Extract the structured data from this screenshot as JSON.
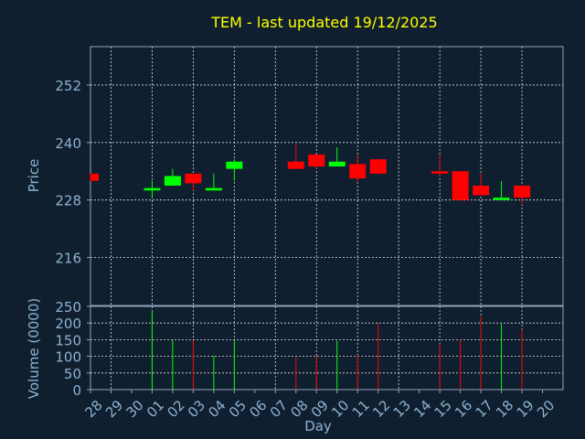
{
  "chart_data": {
    "type": "candlestick",
    "title": "TEM - last updated 19/12/2025",
    "price_panel": {
      "ylabel": "Price",
      "ylim": [
        206,
        260
      ],
      "yticks": [
        216,
        228,
        240,
        252
      ],
      "grid": true
    },
    "volume_panel": {
      "ylabel": "Volume (0000)",
      "ylim": [
        0,
        250
      ],
      "yticks": [
        0,
        50,
        100,
        150,
        200,
        250
      ],
      "grid": true
    },
    "xlabel": "Day",
    "x_tick_labels": [
      "28",
      "29",
      "30",
      "01",
      "02",
      "03",
      "04",
      "05",
      "06",
      "07",
      "08",
      "09",
      "10",
      "11",
      "12",
      "13",
      "14",
      "15",
      "16",
      "17",
      "18",
      "19",
      "20"
    ],
    "x_range": [
      0,
      22
    ],
    "up_color": "#00ff00",
    "down_color": "#ff0000",
    "candles": [
      {
        "x": 0,
        "open": 233.5,
        "high": 233.5,
        "low": 232.0,
        "close": 232.0,
        "volume": 0
      },
      {
        "x": 3,
        "open": 230.0,
        "high": 232.0,
        "low": 228.5,
        "close": 230.5,
        "volume": 235
      },
      {
        "x": 4,
        "open": 231.0,
        "high": 234.5,
        "low": 231.0,
        "close": 233.0,
        "volume": 150
      },
      {
        "x": 5,
        "open": 233.5,
        "high": 233.5,
        "low": 230.0,
        "close": 231.5,
        "volume": 148
      },
      {
        "x": 6,
        "open": 230.0,
        "high": 233.5,
        "low": 230.0,
        "close": 230.5,
        "volume": 102
      },
      {
        "x": 7,
        "open": 234.5,
        "high": 236.5,
        "low": 232.0,
        "close": 236.0,
        "volume": 148
      },
      {
        "x": 10,
        "open": 236.0,
        "high": 239.5,
        "low": 234.5,
        "close": 234.5,
        "volume": 98
      },
      {
        "x": 11,
        "open": 237.5,
        "high": 237.5,
        "low": 234.5,
        "close": 235.0,
        "volume": 100
      },
      {
        "x": 12,
        "open": 235.0,
        "high": 239.0,
        "low": 235.0,
        "close": 236.0,
        "volume": 147
      },
      {
        "x": 13,
        "open": 235.5,
        "high": 237.5,
        "low": 232.0,
        "close": 232.5,
        "volume": 105
      },
      {
        "x": 14,
        "open": 236.5,
        "high": 236.5,
        "low": 233.5,
        "close": 233.5,
        "volume": 200
      },
      {
        "x": 17,
        "open": 234.0,
        "high": 237.5,
        "low": 233.0,
        "close": 233.5,
        "volume": 138
      },
      {
        "x": 18,
        "open": 234.0,
        "high": 234.0,
        "low": 228.0,
        "close": 228.0,
        "volume": 150
      },
      {
        "x": 19,
        "open": 231.0,
        "high": 233.5,
        "low": 229.0,
        "close": 229.0,
        "volume": 220
      },
      {
        "x": 20,
        "open": 228.0,
        "high": 232.0,
        "low": 228.0,
        "close": 228.5,
        "volume": 197
      },
      {
        "x": 21,
        "open": 231.0,
        "high": 231.0,
        "low": 227.0,
        "close": 228.5,
        "volume": 180
      }
    ]
  }
}
